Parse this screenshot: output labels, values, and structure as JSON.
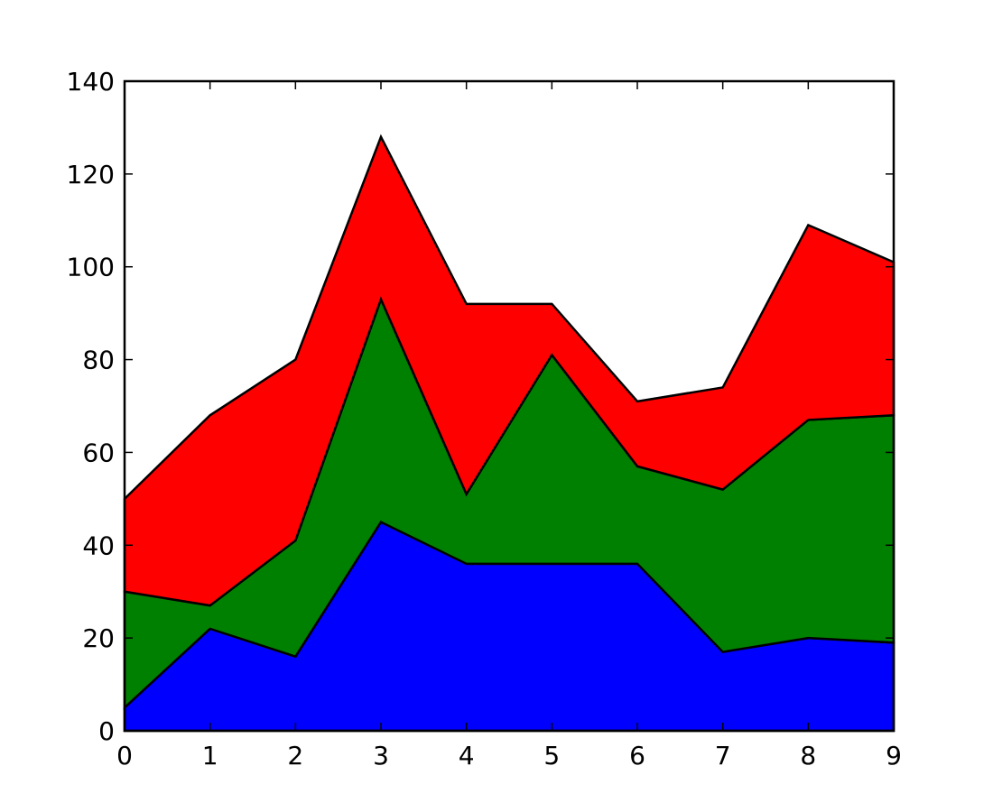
{
  "chart_data": {
    "type": "area",
    "stacked": true,
    "title": "",
    "xlabel": "",
    "ylabel": "",
    "x": [
      0,
      1,
      2,
      3,
      4,
      5,
      6,
      7,
      8,
      9
    ],
    "xlim": [
      0,
      9
    ],
    "ylim": [
      0,
      140
    ],
    "xticks": [
      "0",
      "1",
      "2",
      "3",
      "4",
      "5",
      "6",
      "7",
      "8",
      "9"
    ],
    "yticks": [
      "0",
      "20",
      "40",
      "60",
      "80",
      "100",
      "120",
      "140"
    ],
    "grid": false,
    "legend": "none",
    "series": [
      {
        "color": "#0000ff",
        "values": [
          5,
          22,
          16,
          45,
          36,
          36,
          36,
          17,
          20,
          19
        ]
      },
      {
        "color": "#008000",
        "values": [
          25,
          5,
          25,
          48,
          15,
          45,
          21,
          35,
          47,
          49
        ]
      },
      {
        "color": "#ff0000",
        "values": [
          20,
          41,
          39,
          35,
          41,
          11,
          14,
          22,
          42,
          33
        ]
      }
    ]
  }
}
